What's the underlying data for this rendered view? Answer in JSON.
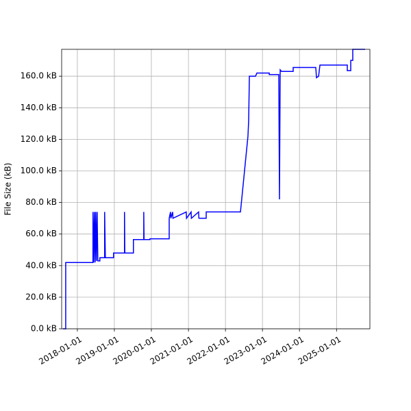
{
  "chart_data": {
    "type": "line",
    "ylabel": "File Size (kB)",
    "x": [
      "2017-08-12",
      "2017-09-08",
      "2017-09-08",
      "2018-06-04",
      "2018-06-04",
      "2018-06-11",
      "2018-06-18",
      "2018-06-25",
      "2018-07-01",
      "2018-07-08",
      "2018-07-15",
      "2018-07-22",
      "2018-08-11",
      "2018-08-11",
      "2018-09-27",
      "2018-09-27",
      "2018-10-04",
      "2018-12-24",
      "2018-12-24",
      "2019-04-11",
      "2019-04-11",
      "2019-04-14",
      "2019-07-08",
      "2019-07-08",
      "2019-10-18",
      "2019-10-18",
      "2019-10-21",
      "2019-12-18",
      "2019-12-18",
      "2020-06-25",
      "2020-06-25",
      "2020-07-08",
      "2020-07-11",
      "2020-07-29",
      "2020-08-01",
      "2020-12-10",
      "2020-12-13",
      "2021-01-27",
      "2021-01-30",
      "2021-04-11",
      "2021-04-14",
      "2021-06-25",
      "2021-06-25",
      "2022-05-29",
      "2022-08-11",
      "2022-08-18",
      "2022-08-25",
      "2022-10-25",
      "2022-11-07",
      "2023-03-09",
      "2023-03-09",
      "2023-06-11",
      "2023-06-18",
      "2023-06-25",
      "2023-07-08",
      "2023-10-31",
      "2023-10-31",
      "2024-06-10",
      "2024-06-17",
      "2024-07-08",
      "2024-07-21",
      "2025-04-17",
      "2025-04-17",
      "2025-05-21",
      "2025-05-21",
      "2025-06-10",
      "2025-06-10",
      "2025-10-10"
    ],
    "series": [
      {
        "name": "File Size",
        "color": "#0000ff",
        "values": [
          0,
          0,
          42,
          42,
          74,
          42,
          74,
          42,
          74,
          43,
          74,
          43,
          43,
          45,
          45,
          74,
          45,
          45,
          48,
          48,
          74,
          48,
          48,
          56.5,
          56.5,
          74,
          56.5,
          56.5,
          57,
          57,
          70,
          74,
          70,
          74,
          70,
          74,
          70,
          74,
          70,
          74,
          70,
          70,
          74,
          74,
          122,
          132,
          160,
          160,
          162,
          162,
          161,
          161,
          82,
          164,
          163,
          163,
          165.5,
          165.5,
          159,
          160,
          167,
          167,
          163.5,
          163.5,
          170,
          170,
          177,
          177
        ]
      }
    ],
    "xlim": [
      "2017-07-30",
      "2025-11-26"
    ],
    "xticks": [
      "2018-01-01",
      "2019-01-01",
      "2020-01-01",
      "2021-01-01",
      "2022-01-01",
      "2023-01-01",
      "2024-01-01",
      "2025-01-01"
    ],
    "ylim": [
      0,
      177
    ],
    "yticks": [
      {
        "value": 0,
        "label": "0.0 kB"
      },
      {
        "value": 20,
        "label": "20.0 kB"
      },
      {
        "value": 40,
        "label": "40.0 kB"
      },
      {
        "value": 60,
        "label": "60.0 kB"
      },
      {
        "value": 80,
        "label": "80.0 kB"
      },
      {
        "value": 100,
        "label": "100.0 kB"
      },
      {
        "value": 120,
        "label": "120.0 kB"
      },
      {
        "value": 140,
        "label": "140.0 kB"
      },
      {
        "value": 160,
        "label": "160.0 kB"
      }
    ],
    "grid": true
  }
}
